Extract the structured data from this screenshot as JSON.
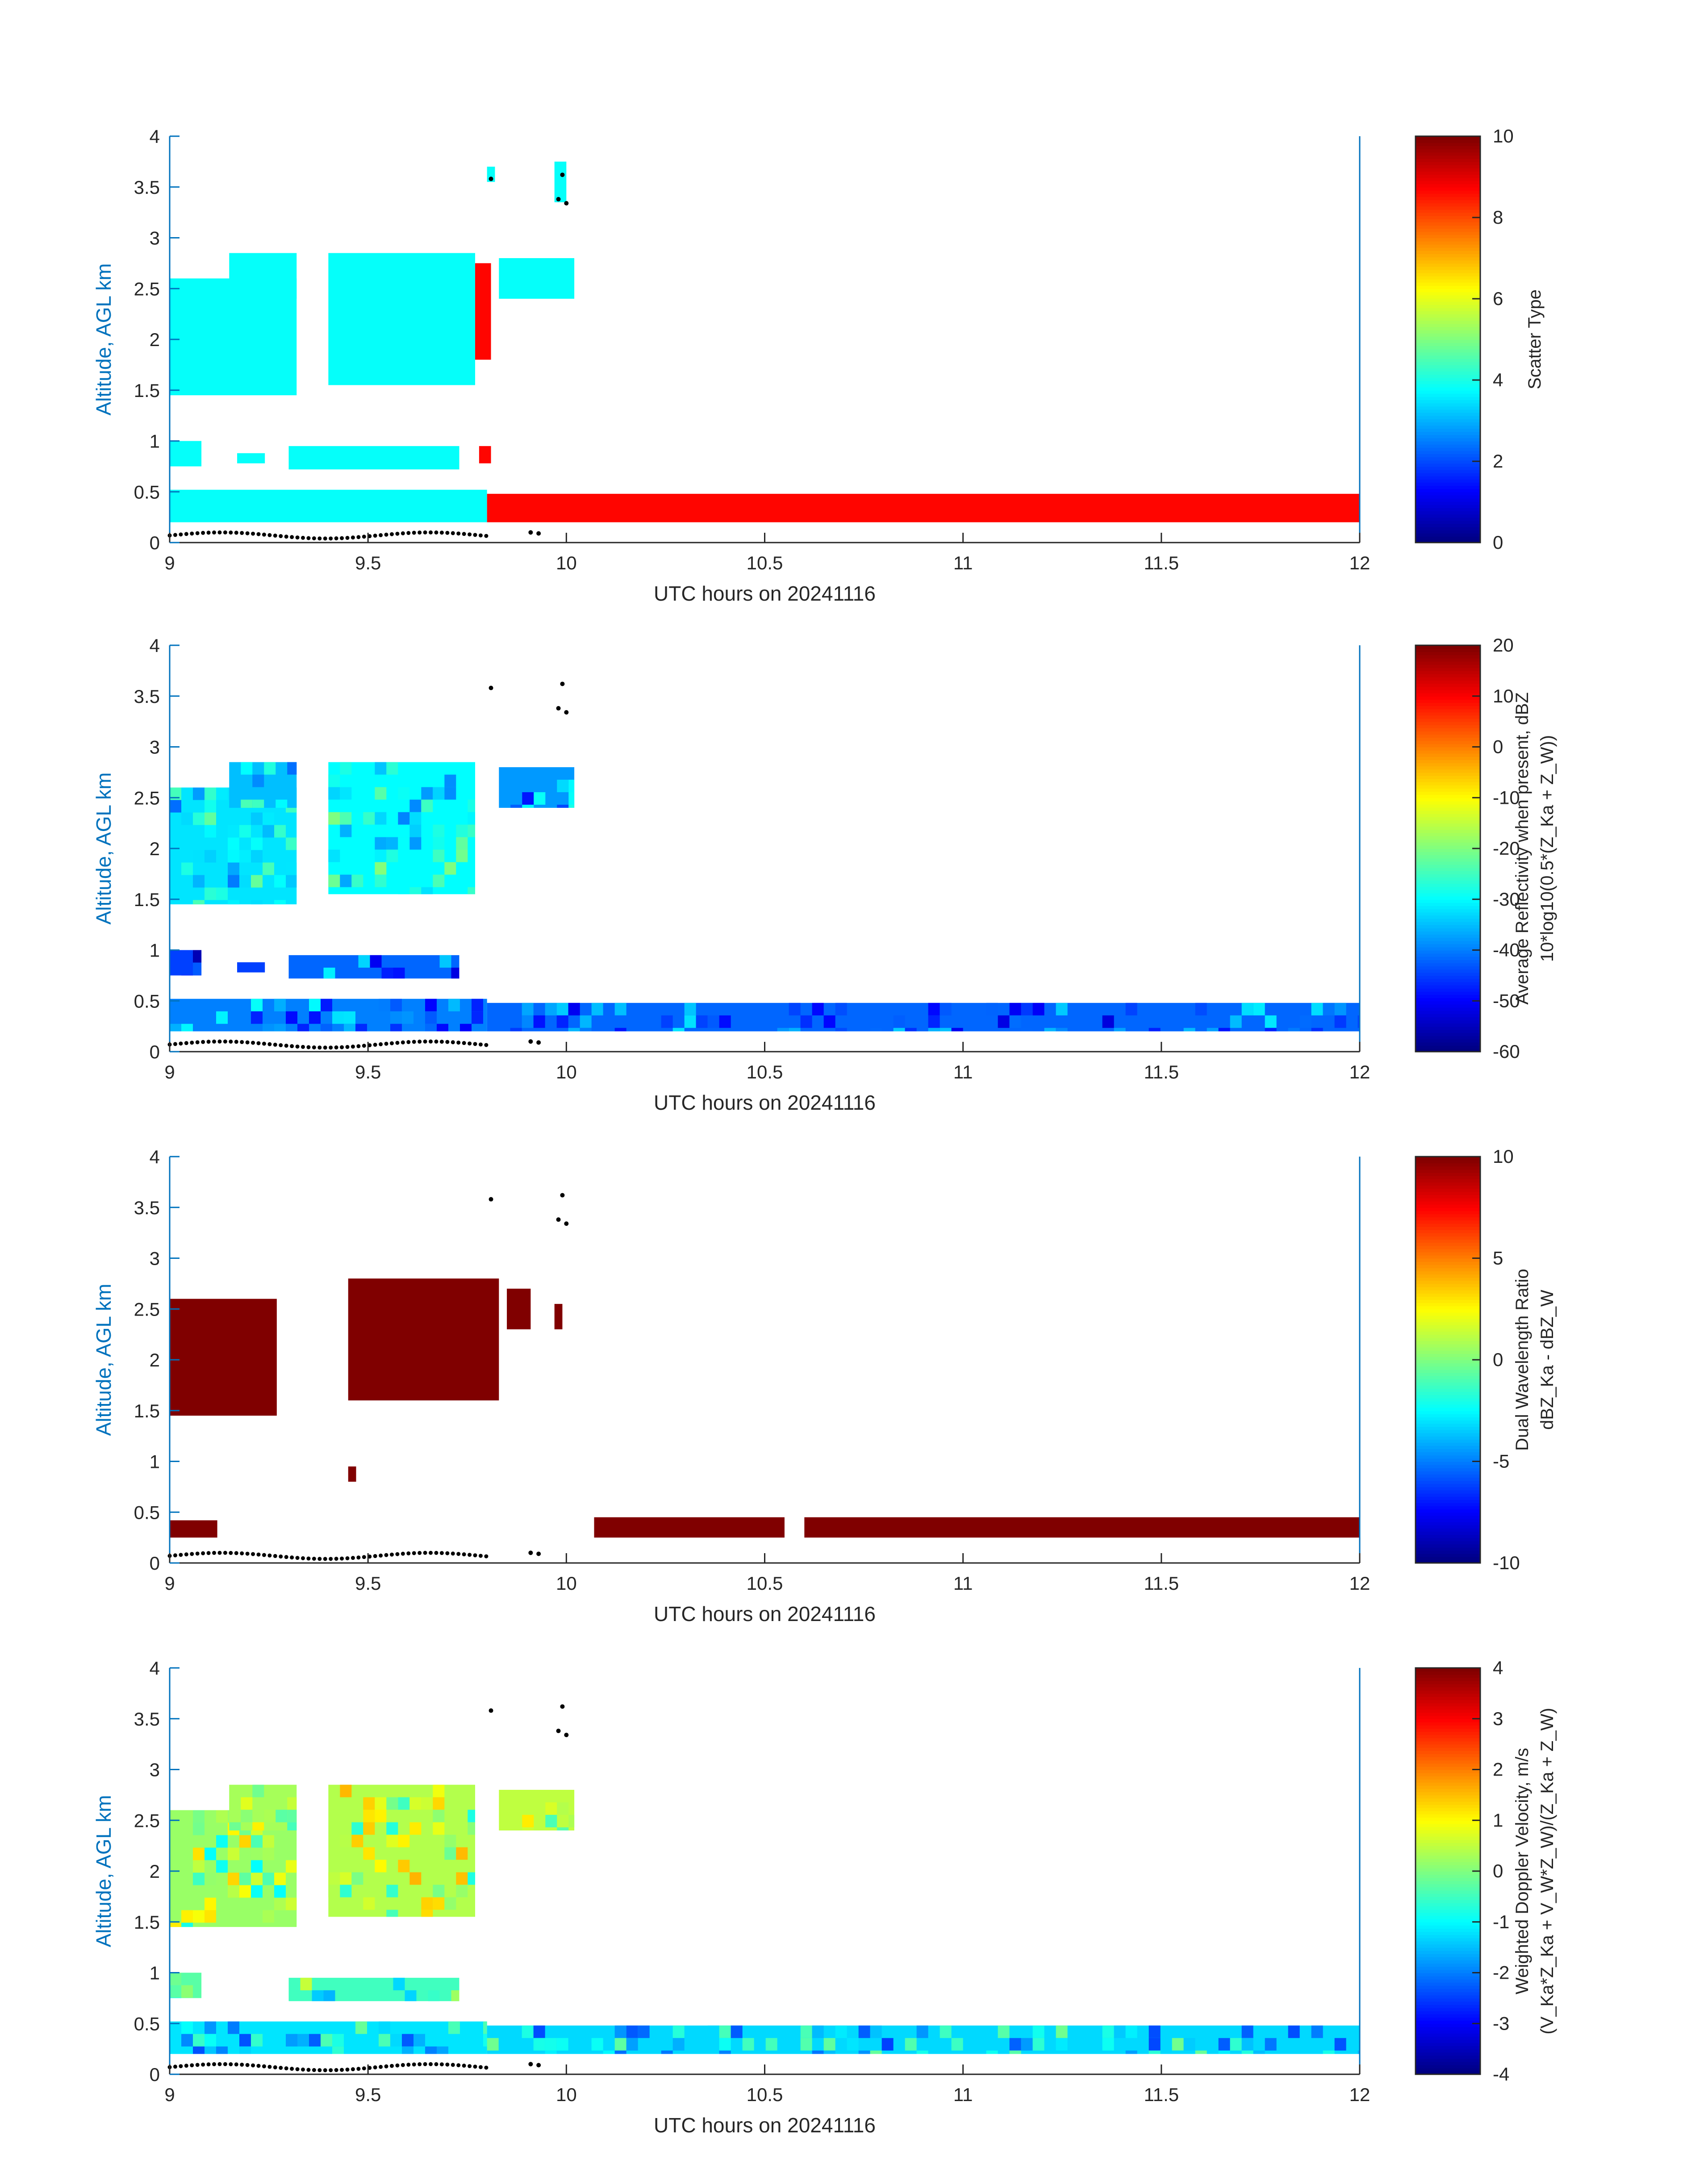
{
  "figure": {
    "colors": {
      "axis": "#262626",
      "ylabel": "#0072bd",
      "surface": "#000000"
    }
  },
  "chart_data": [
    {
      "type": "heatmap",
      "xlabel": "UTC hours on 20241116",
      "ylabel": "Altitude, AGL km",
      "xlim": [
        9,
        12
      ],
      "ylim": [
        0,
        4
      ],
      "xticks": [
        "9",
        "9.5",
        "10",
        "10.5",
        "11",
        "11.5",
        "12"
      ],
      "yticks": [
        "0",
        "0.5",
        "1",
        "1.5",
        "2",
        "2.5",
        "3",
        "3.5",
        "4"
      ],
      "colorbar": {
        "label_lines": [
          "Scatter Type"
        ],
        "clim": [
          0,
          10
        ],
        "ticks": [
          "0",
          "2",
          "4",
          "6",
          "8",
          "10"
        ]
      },
      "regions": [
        {
          "x0": 9.0,
          "x1": 9.32,
          "y0": 1.45,
          "y1": 2.6,
          "value": 3.8
        },
        {
          "x0": 9.15,
          "x1": 9.32,
          "y0": 2.4,
          "y1": 2.85,
          "value": 3.8
        },
        {
          "x0": 9.4,
          "x1": 9.77,
          "y0": 1.55,
          "y1": 2.85,
          "value": 3.8
        },
        {
          "x0": 9.83,
          "x1": 10.02,
          "y0": 2.4,
          "y1": 2.8,
          "value": 3.8
        },
        {
          "x0": 9.77,
          "x1": 9.81,
          "y0": 1.8,
          "y1": 2.75,
          "value": 8.7
        },
        {
          "x0": 9.0,
          "x1": 9.08,
          "y0": 0.75,
          "y1": 1.0,
          "value": 3.8
        },
        {
          "x0": 9.17,
          "x1": 9.24,
          "y0": 0.78,
          "y1": 0.88,
          "value": 3.8
        },
        {
          "x0": 9.3,
          "x1": 9.73,
          "y0": 0.72,
          "y1": 0.95,
          "value": 3.8
        },
        {
          "x0": 9.0,
          "x1": 9.8,
          "y0": 0.2,
          "y1": 0.52,
          "value": 3.8
        },
        {
          "x0": 9.8,
          "x1": 12.0,
          "y0": 0.2,
          "y1": 0.48,
          "value": 8.7
        },
        {
          "x0": 9.78,
          "x1": 9.81,
          "y0": 0.78,
          "y1": 0.95,
          "value": 8.7
        },
        {
          "x0": 9.8,
          "x1": 9.82,
          "y0": 3.55,
          "y1": 3.7,
          "value": 3.8
        },
        {
          "x0": 9.97,
          "x1": 10.0,
          "y0": 3.35,
          "y1": 3.75,
          "value": 3.8
        }
      ]
    },
    {
      "type": "heatmap",
      "xlabel": "UTC hours on 20241116",
      "ylabel": "Altitude, AGL km",
      "xlim": [
        9,
        12
      ],
      "ylim": [
        0,
        4
      ],
      "xticks": [
        "9",
        "9.5",
        "10",
        "10.5",
        "11",
        "11.5",
        "12"
      ],
      "yticks": [
        "0",
        "0.5",
        "1",
        "1.5",
        "2",
        "2.5",
        "3",
        "3.5",
        "4"
      ],
      "colorbar": {
        "label_lines": [
          "Average Reflectivity when present, dBZ",
          "10*log10(0.5*(Z_Ka + Z_W))"
        ],
        "clim": [
          -60,
          20
        ],
        "ticks": [
          "-60",
          "-50",
          "-40",
          "-30",
          "-20",
          "-10",
          "0",
          "10",
          "20"
        ]
      },
      "regions": [
        {
          "x0": 9.0,
          "x1": 9.32,
          "y0": 1.45,
          "y1": 2.6,
          "value": -32
        },
        {
          "x0": 9.15,
          "x1": 9.32,
          "y0": 2.4,
          "y1": 2.85,
          "value": -35
        },
        {
          "x0": 9.4,
          "x1": 9.77,
          "y0": 1.55,
          "y1": 2.85,
          "value": -30
        },
        {
          "x0": 9.83,
          "x1": 10.02,
          "y0": 2.4,
          "y1": 2.8,
          "value": -38
        },
        {
          "x0": 9.0,
          "x1": 9.08,
          "y0": 0.75,
          "y1": 1.0,
          "value": -45
        },
        {
          "x0": 9.17,
          "x1": 9.24,
          "y0": 0.78,
          "y1": 0.88,
          "value": -45
        },
        {
          "x0": 9.3,
          "x1": 9.73,
          "y0": 0.72,
          "y1": 0.95,
          "value": -42
        },
        {
          "x0": 9.0,
          "x1": 9.8,
          "y0": 0.2,
          "y1": 0.52,
          "value": -40
        },
        {
          "x0": 9.8,
          "x1": 12.0,
          "y0": 0.2,
          "y1": 0.48,
          "value": -42
        }
      ]
    },
    {
      "type": "heatmap",
      "xlabel": "UTC hours on 20241116",
      "ylabel": "Altitude, AGL km",
      "xlim": [
        9,
        12
      ],
      "ylim": [
        0,
        4
      ],
      "xticks": [
        "9",
        "9.5",
        "10",
        "10.5",
        "11",
        "11.5",
        "12"
      ],
      "yticks": [
        "0",
        "0.5",
        "1",
        "1.5",
        "2",
        "2.5",
        "3",
        "3.5",
        "4"
      ],
      "colorbar": {
        "label_lines": [
          "Dual Wavelength Ratio",
          "dBZ_Ka - dBZ_W"
        ],
        "clim": [
          -10,
          10
        ],
        "ticks": [
          "-10",
          "-5",
          "0",
          "5",
          "10"
        ]
      },
      "regions": [
        {
          "x0": 9.0,
          "x1": 9.27,
          "y0": 1.45,
          "y1": 2.6,
          "value": 10
        },
        {
          "x0": 9.45,
          "x1": 9.83,
          "y0": 1.6,
          "y1": 2.8,
          "value": 10
        },
        {
          "x0": 9.85,
          "x1": 9.91,
          "y0": 2.3,
          "y1": 2.7,
          "value": 10
        },
        {
          "x0": 9.97,
          "x1": 9.99,
          "y0": 2.3,
          "y1": 2.55,
          "value": 10
        },
        {
          "x0": 9.45,
          "x1": 9.47,
          "y0": 0.8,
          "y1": 0.95,
          "value": 10
        },
        {
          "x0": 9.0,
          "x1": 9.12,
          "y0": 0.25,
          "y1": 0.42,
          "value": 10
        },
        {
          "x0": 10.07,
          "x1": 10.55,
          "y0": 0.25,
          "y1": 0.45,
          "value": 10
        },
        {
          "x0": 10.6,
          "x1": 12.0,
          "y0": 0.25,
          "y1": 0.45,
          "value": 10
        }
      ]
    },
    {
      "type": "heatmap",
      "xlabel": "UTC hours on 20241116",
      "ylabel": "Altitude, AGL km",
      "xlim": [
        9,
        12
      ],
      "ylim": [
        0,
        4
      ],
      "xticks": [
        "9",
        "9.5",
        "10",
        "10.5",
        "11",
        "11.5",
        "12"
      ],
      "yticks": [
        "0",
        "0.5",
        "1",
        "1.5",
        "2",
        "2.5",
        "3",
        "3.5",
        "4"
      ],
      "colorbar": {
        "label_lines": [
          "Weighted Doppler Velocity, m/s",
          "(V_Ka*Z_Ka + V_W*Z_W)/(Z_Ka + Z_W)"
        ],
        "clim": [
          -4,
          4
        ],
        "ticks": [
          "-4",
          "-3",
          "-2",
          "-1",
          "0",
          "1",
          "2",
          "3",
          "4"
        ]
      },
      "regions": [
        {
          "x0": 9.0,
          "x1": 9.32,
          "y0": 1.45,
          "y1": 2.6,
          "value": 0.2
        },
        {
          "x0": 9.15,
          "x1": 9.32,
          "y0": 2.4,
          "y1": 2.85,
          "value": 0.3
        },
        {
          "x0": 9.4,
          "x1": 9.77,
          "y0": 1.55,
          "y1": 2.85,
          "value": 0.4
        },
        {
          "x0": 9.83,
          "x1": 10.02,
          "y0": 2.4,
          "y1": 2.8,
          "value": 0.5
        },
        {
          "x0": 9.0,
          "x1": 9.08,
          "y0": 0.75,
          "y1": 1.0,
          "value": -0.3
        },
        {
          "x0": 9.3,
          "x1": 9.73,
          "y0": 0.72,
          "y1": 0.95,
          "value": -0.5
        },
        {
          "x0": 9.0,
          "x1": 9.8,
          "y0": 0.2,
          "y1": 0.52,
          "value": -1.2
        },
        {
          "x0": 9.8,
          "x1": 12.0,
          "y0": 0.2,
          "y1": 0.48,
          "value": -1.3
        }
      ]
    }
  ]
}
